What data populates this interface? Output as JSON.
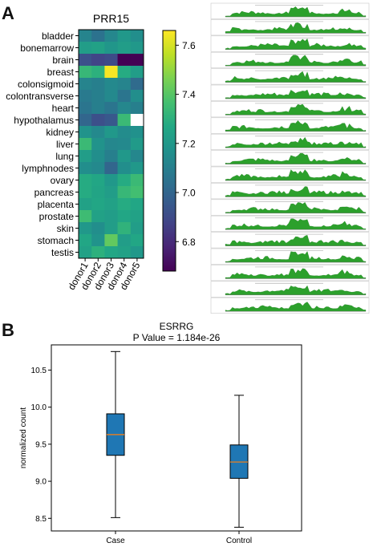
{
  "figure": {
    "panel_a_label": "A",
    "panel_b_label": "B"
  },
  "chart_data": [
    {
      "type": "heatmap",
      "title": "PRR15",
      "rows": [
        "bladder",
        "bonemarrow",
        "brain",
        "breast",
        "colonsigmoid",
        "colontransverse",
        "heart",
        "hypothalamus",
        "kidney",
        "liver",
        "lung",
        "lymphnodes",
        "ovary",
        "pancreas",
        "placenta",
        "prostate",
        "skin",
        "stomach",
        "testis"
      ],
      "columns": [
        "donor1",
        "donor2",
        "donor3",
        "donor4",
        "donor5"
      ],
      "values": [
        [
          7.12,
          7.05,
          7.13,
          7.2,
          7.16
        ],
        [
          7.22,
          7.24,
          7.19,
          7.22,
          7.2
        ],
        [
          6.92,
          6.88,
          6.9,
          6.68,
          6.68
        ],
        [
          7.33,
          7.3,
          7.65,
          7.28,
          7.22
        ],
        [
          7.12,
          7.1,
          7.14,
          7.12,
          7.02
        ],
        [
          7.08,
          7.1,
          7.14,
          7.06,
          7.16
        ],
        [
          7.06,
          7.1,
          7.06,
          7.13,
          7.1
        ],
        [
          7.0,
          6.92,
          6.95,
          7.34,
          null
        ],
        [
          7.18,
          7.14,
          7.2,
          7.15,
          7.17
        ],
        [
          7.34,
          7.18,
          7.13,
          7.14,
          7.21
        ],
        [
          7.22,
          7.16,
          7.1,
          7.2,
          7.13
        ],
        [
          7.16,
          7.14,
          7.0,
          7.16,
          7.2
        ],
        [
          7.28,
          7.26,
          7.2,
          7.28,
          7.34
        ],
        [
          7.28,
          7.25,
          7.22,
          7.33,
          7.36
        ],
        [
          7.24,
          7.26,
          7.24,
          7.28,
          7.26
        ],
        [
          7.35,
          7.24,
          7.22,
          7.26,
          7.24
        ],
        [
          7.2,
          7.16,
          7.22,
          7.31,
          7.22
        ],
        [
          7.26,
          7.18,
          7.42,
          7.22,
          7.26
        ],
        [
          7.24,
          7.3,
          7.26,
          7.24,
          7.2
        ]
      ],
      "colormap": "viridis",
      "vmin": 6.68,
      "vmax": 7.66,
      "colorbar_ticks": [
        "6.8",
        "7.0",
        "7.2",
        "7.4",
        "7.6"
      ],
      "missing_color": "#ffffff"
    },
    {
      "type": "area",
      "track_count": 19,
      "color": "#2ca02c",
      "note_visible": "small stacked coverage track plots with unreadable labels"
    },
    {
      "type": "box",
      "title": "ESRRG",
      "subtitle": "P Value = 1.184e-26",
      "categories": [
        "Case",
        "Control"
      ],
      "ylabel": "normalized count",
      "ylim": [
        8.33,
        10.84
      ],
      "yticks": [
        "8.5",
        "9.0",
        "9.5",
        "10.0",
        "10.5"
      ],
      "boxes": [
        {
          "name": "Case",
          "min": 8.51,
          "q1": 9.35,
          "median": 9.63,
          "q3": 9.91,
          "max": 10.75
        },
        {
          "name": "Control",
          "min": 8.38,
          "q1": 9.04,
          "median": 9.26,
          "q3": 9.49,
          "max": 10.16
        }
      ],
      "box_color": "#1f77b4",
      "median_color": "#ff7f0e"
    }
  ]
}
